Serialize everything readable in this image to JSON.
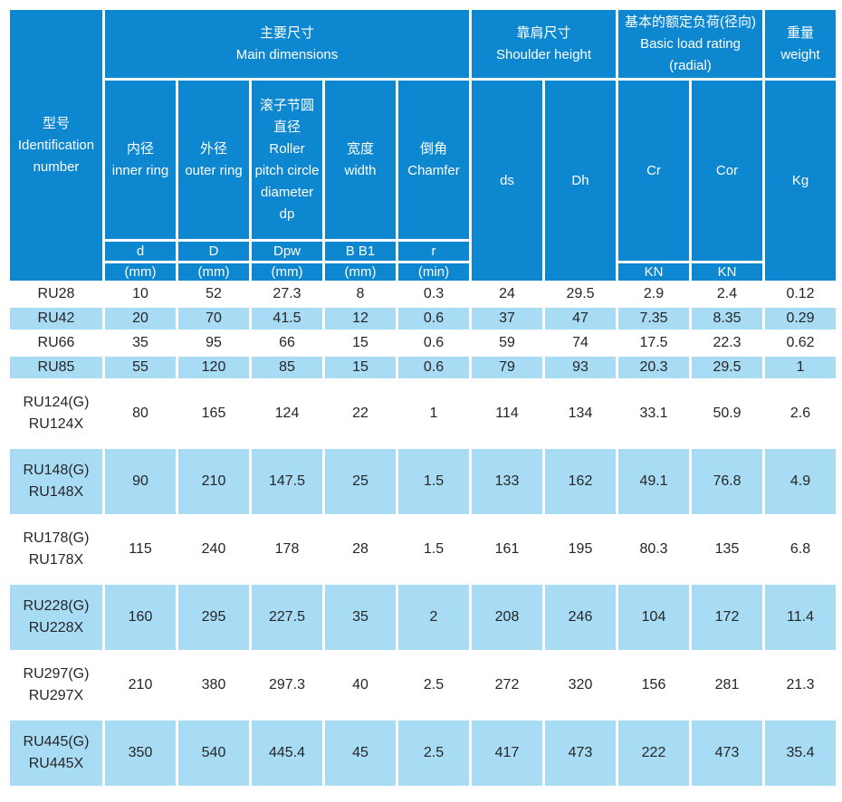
{
  "header": {
    "id_col": {
      "zh": "型号",
      "en": "Identification number"
    },
    "groups": {
      "main_dimensions": {
        "zh": "主要尺寸",
        "en": "Main dimensions"
      },
      "shoulder_height": {
        "zh": "靠肩尺寸",
        "en": "Shoulder height"
      },
      "basic_load_rating": {
        "zh": "基本的额定负荷(径向)",
        "en": "Basic load rating (radial)"
      },
      "weight": {
        "zh": "重量",
        "en": "weight"
      }
    },
    "sub": {
      "inner_ring": {
        "zh": "内径",
        "en": "inner ring"
      },
      "outer_ring": {
        "zh": "外径",
        "en": "outer ring"
      },
      "roller_pitch": {
        "zh": "滚子节圆直径",
        "en": "Roller pitch circle diameter dp"
      },
      "width": {
        "zh": "宽度",
        "en": "width"
      },
      "chamfer": {
        "zh": "倒角",
        "en": "Chamfer"
      },
      "ds": "ds",
      "dh": "Dh",
      "cr": "Cr",
      "cor": "Cor",
      "kg": "Kg"
    },
    "sym_row": [
      "d",
      "D",
      "Dpw",
      "B B1",
      "r"
    ],
    "unit_row": [
      "(mm)",
      "(mm)",
      "(mm)",
      "(mm)",
      "(min)"
    ],
    "kn_unit": "KN"
  },
  "colors": {
    "header_blue": "#0d87d0",
    "row_light_blue": "#a8dbf4",
    "row_white": "#ffffff",
    "header_text": "#ffffff",
    "data_text": "#262626"
  },
  "rows": [
    {
      "model": [
        "RU28"
      ],
      "values": [
        "10",
        "52",
        "27.3",
        "8",
        "0.3",
        "24",
        "29.5",
        "2.9",
        "2.4",
        "0.12"
      ]
    },
    {
      "model": [
        "RU42"
      ],
      "values": [
        "20",
        "70",
        "41.5",
        "12",
        "0.6",
        "37",
        "47",
        "7.35",
        "8.35",
        "0.29"
      ]
    },
    {
      "model": [
        "RU66"
      ],
      "values": [
        "35",
        "95",
        "66",
        "15",
        "0.6",
        "59",
        "74",
        "17.5",
        "22.3",
        "0.62"
      ]
    },
    {
      "model": [
        "RU85"
      ],
      "values": [
        "55",
        "120",
        "85",
        "15",
        "0.6",
        "79",
        "93",
        "20.3",
        "29.5",
        "1"
      ]
    },
    {
      "model": [
        "RU124(G)",
        "RU124X"
      ],
      "values": [
        "80",
        "165",
        "124",
        "22",
        "1",
        "114",
        "134",
        "33.1",
        "50.9",
        "2.6"
      ]
    },
    {
      "model": [
        "RU148(G)",
        "RU148X"
      ],
      "values": [
        "90",
        "210",
        "147.5",
        "25",
        "1.5",
        "133",
        "162",
        "49.1",
        "76.8",
        "4.9"
      ]
    },
    {
      "model": [
        "RU178(G)",
        "RU178X"
      ],
      "values": [
        "115",
        "240",
        "178",
        "28",
        "1.5",
        "161",
        "195",
        "80.3",
        "135",
        "6.8"
      ]
    },
    {
      "model": [
        "RU228(G)",
        "RU228X"
      ],
      "values": [
        "160",
        "295",
        "227.5",
        "35",
        "2",
        "208",
        "246",
        "104",
        "172",
        "11.4"
      ]
    },
    {
      "model": [
        "RU297(G)",
        "RU297X"
      ],
      "values": [
        "210",
        "380",
        "297.3",
        "40",
        "2.5",
        "272",
        "320",
        "156",
        "281",
        "21.3"
      ]
    },
    {
      "model": [
        "RU445(G)",
        "RU445X"
      ],
      "values": [
        "350",
        "540",
        "445.4",
        "45",
        "2.5",
        "417",
        "473",
        "222",
        "473",
        "35.4"
      ]
    }
  ]
}
